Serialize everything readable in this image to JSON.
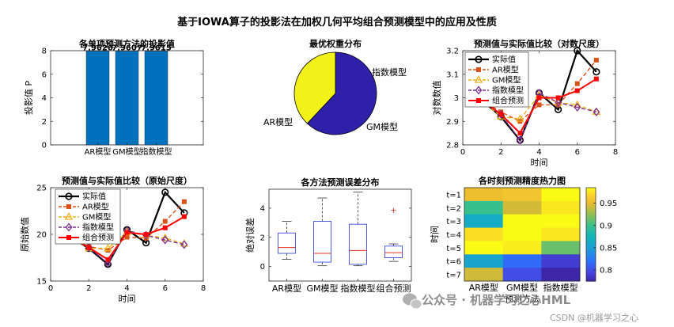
{
  "figure": {
    "title": "基于IOWA算子的投影法在加权几何平均组合预测模型中的应用及性质"
  },
  "watermark": {
    "primary": "公众号 · 机器学习之心HML",
    "secondary": "CSDN @机器学习之心",
    "icon": "wechat-icon"
  },
  "colors": {
    "bar": "#0072BD",
    "actual": "#000000",
    "ar": "#D95319",
    "gm": "#EDB120",
    "index": "#7E2F8E",
    "combo": "#FF0000",
    "pie_ar": "#2E20A8",
    "pie_index": "#F2F21A",
    "box": "#3B4CD8",
    "median": "#E0301E"
  },
  "chart_data": [
    {
      "type": "bar",
      "title": "各单项预测方法的投影值",
      "ylabel": "投影值 P",
      "categories": [
        "AR模型",
        "GM模型",
        "指数模型"
      ],
      "values": [
        7.9626,
        7.9607,
        7.9615
      ],
      "value_labels": [
        "7.9626",
        "7.9607",
        "7.9615"
      ],
      "ylim": [
        0,
        8
      ],
      "yticks": [
        0,
        2,
        4,
        6,
        8
      ]
    },
    {
      "type": "pie",
      "title": "最优权重分布",
      "labels": [
        "AR模型",
        "GM模型",
        "指数模型"
      ],
      "values": [
        0.62,
        0.0,
        0.38
      ]
    },
    {
      "type": "line",
      "title": "预测值与实际值比较（对数尺度）",
      "xlabel": "时间",
      "ylabel": "对数数值",
      "xlim": [
        0,
        8
      ],
      "ylim": [
        2.8,
        3.2
      ],
      "xticks": [
        0,
        2,
        4,
        6,
        8
      ],
      "yticks": [
        2.8,
        2.9,
        3.0,
        3.1,
        3.2
      ],
      "ytick_labels": [
        "2.8",
        "2.9",
        "3",
        "3.1",
        "3.2"
      ],
      "legend": [
        "实际值",
        "AR模型",
        "GM模型",
        "指数模型",
        "组合预测"
      ],
      "legend_position": "top-left",
      "x": [
        1,
        2,
        3,
        4,
        5,
        6,
        7
      ],
      "series": [
        {
          "name": "实际值",
          "values": [
            2.99,
            2.92,
            2.82,
            3.02,
            2.95,
            3.2,
            3.11
          ]
        },
        {
          "name": "AR模型",
          "values": [
            2.99,
            2.94,
            2.9,
            2.97,
            2.97,
            3.06,
            3.16
          ]
        },
        {
          "name": "GM模型",
          "values": [
            2.99,
            2.92,
            2.91,
            3.01,
            2.98,
            2.97,
            2.94
          ]
        },
        {
          "name": "指数模型",
          "values": [
            2.99,
            2.93,
            2.82,
            3.02,
            2.98,
            2.96,
            2.94
          ]
        },
        {
          "name": "组合预测",
          "values": [
            2.99,
            2.93,
            2.85,
            3.0,
            3.0,
            3.03,
            3.08
          ]
        }
      ]
    },
    {
      "type": "line",
      "title": "预测值与实际值比较（原始尺度）",
      "xlabel": "时间",
      "ylabel": "原始数值",
      "xlim": [
        0,
        8
      ],
      "ylim": [
        15,
        25
      ],
      "xticks": [
        0,
        2,
        4,
        6,
        8
      ],
      "yticks": [
        15,
        20,
        25
      ],
      "legend": [
        "实际值",
        "AR模型",
        "GM模型",
        "指数模型",
        "组合预测"
      ],
      "legend_position": "top-left",
      "x": [
        1,
        2,
        3,
        4,
        5,
        6,
        7
      ],
      "series": [
        {
          "name": "实际值",
          "values": [
            19.8,
            18.5,
            16.8,
            20.5,
            19.1,
            24.5,
            22.3
          ]
        },
        {
          "name": "AR模型",
          "values": [
            19.8,
            18.7,
            18.3,
            19.7,
            19.6,
            21.4,
            23.5
          ]
        },
        {
          "name": "GM模型",
          "values": [
            19.8,
            18.5,
            18.5,
            20.2,
            19.9,
            19.6,
            19.0
          ]
        },
        {
          "name": "指数模型",
          "values": [
            19.8,
            18.6,
            16.9,
            20.4,
            19.9,
            19.4,
            18.9
          ]
        },
        {
          "name": "组合预测",
          "values": [
            19.8,
            18.6,
            17.3,
            20.2,
            20.0,
            20.7,
            21.9
          ]
        }
      ]
    },
    {
      "type": "box",
      "title": "各方法预测误差分布",
      "ylabel": "绝对误差",
      "categories": [
        "AR模型",
        "GM模型",
        "指数模型",
        "组合预测"
      ],
      "ylim": [
        -1,
        5.3
      ],
      "yticks": [
        0,
        2,
        4
      ],
      "boxes": [
        {
          "min": 0.5,
          "q1": 0.9,
          "median": 1.3,
          "q3": 2.3,
          "max": 3.1,
          "outliers": []
        },
        {
          "min": 0.05,
          "q1": 0.3,
          "median": 0.9,
          "q3": 3.1,
          "max": 4.7,
          "outliers": []
        },
        {
          "min": 0.05,
          "q1": 0.15,
          "median": 1.1,
          "q3": 2.9,
          "max": 5.1,
          "outliers": []
        },
        {
          "min": 0.35,
          "q1": 0.6,
          "median": 0.95,
          "q3": 1.4,
          "max": 1.55,
          "outliers": [
            3.85
          ]
        }
      ]
    },
    {
      "type": "heatmap",
      "title": "各时刻预测精度热力图",
      "xlabel": "预测方法",
      "ylabel": "时间",
      "x_categories": [
        "AR模型",
        "GM模型",
        "指数模型"
      ],
      "y_categories": [
        "t=1",
        "t=2",
        "t=3",
        "t=4",
        "t=5",
        "t=6",
        "t=7"
      ],
      "values": [
        [
          0.955,
          0.96,
          0.985
        ],
        [
          0.9,
          0.945,
          0.978
        ],
        [
          0.865,
          0.985,
          0.985
        ],
        [
          0.975,
          0.985,
          0.978
        ],
        [
          0.985,
          0.98,
          0.915
        ],
        [
          0.858,
          0.818,
          0.79
        ],
        [
          0.944,
          0.8,
          0.77
        ]
      ],
      "clim": [
        0.775,
        0.985
      ],
      "colorbar_ticks": [
        0.8,
        0.85,
        0.9,
        0.95
      ]
    }
  ]
}
